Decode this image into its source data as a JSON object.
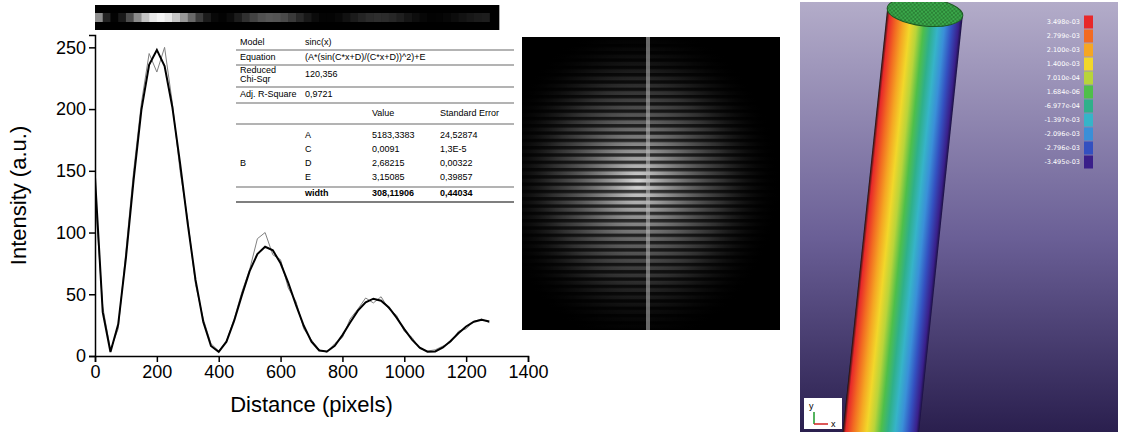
{
  "chart_data": {
    "type": "line",
    "xlabel": "Distance (pixels)",
    "ylabel": "Intensity (a.u.)",
    "xlim": [
      0,
      1400
    ],
    "ylim": [
      0,
      260
    ],
    "xticks": [
      0,
      200,
      400,
      600,
      800,
      1000,
      1200,
      1400
    ],
    "yticks": [
      0,
      50,
      100,
      150,
      200,
      250
    ],
    "series": [
      {
        "color": "#808080",
        "line_style": "solid",
        "x": [
          0,
          25,
          50,
          75,
          100,
          125,
          150,
          175,
          200,
          225,
          250,
          275,
          300,
          325,
          350,
          375,
          400,
          425,
          450,
          475,
          500,
          525,
          550,
          575,
          600,
          625,
          650,
          675,
          700,
          725,
          750,
          775,
          800,
          825,
          850,
          875,
          900,
          925,
          950,
          975,
          1000,
          1025,
          1050,
          1075,
          1100,
          1125,
          1150,
          1175,
          1200,
          1225,
          1250,
          1275
        ],
        "values": [
          130,
          40,
          5,
          22,
          85,
          150,
          205,
          245,
          230,
          250,
          205,
          150,
          110,
          58,
          30,
          10,
          4,
          12,
          30,
          52,
          70,
          95,
          100,
          82,
          78,
          55,
          44,
          22,
          13,
          5,
          3,
          10,
          15,
          30,
          38,
          47,
          43,
          48,
          38,
          33,
          20,
          15,
          6,
          4,
          5,
          8,
          11,
          20,
          22,
          28,
          30,
          27
        ]
      },
      {
        "color": "#000000",
        "line_style": "solid",
        "x": [
          0,
          25,
          50,
          75,
          100,
          125,
          150,
          175,
          200,
          225,
          250,
          275,
          300,
          325,
          350,
          375,
          400,
          425,
          450,
          475,
          500,
          525,
          550,
          575,
          600,
          625,
          650,
          675,
          700,
          725,
          750,
          775,
          800,
          825,
          850,
          875,
          900,
          925,
          950,
          975,
          1000,
          1025,
          1050,
          1075,
          1100,
          1125,
          1150,
          1175,
          1200,
          1225,
          1250,
          1275
        ],
        "values": [
          145,
          35.5,
          3.2,
          25.7,
          79.5,
          143.1,
          199.3,
          235.9,
          247.9,
          234.8,
          201.7,
          156.2,
          106.9,
          61.6,
          27.8,
          8.1,
          3.4,
          11.6,
          28.6,
          49.3,
          68.7,
          82.6,
          88.5,
          85.6,
          75.1,
          59.2,
          41.2,
          24.5,
          11.6,
          4.5,
          3.6,
          8.3,
          16.9,
          27.1,
          36.7,
          43.5,
          46.4,
          44.8,
          39.3,
          31.1,
          21.8,
          13.3,
          6.8,
          3.5,
          3.7,
          6.9,
          12.2,
          18.4,
          23.9,
          27.8,
          29.3,
          28
        ]
      }
    ]
  },
  "fit_table": {
    "info_rows": [
      [
        "Model",
        "sinc(x)"
      ],
      [
        "Equation",
        "(A*(sin(C*x+D)/(C*x+D))^2)+E"
      ],
      [
        "Reduced Chi-Sqr",
        "120,356"
      ],
      [
        "Adj. R-Square",
        "0,9721"
      ]
    ],
    "columns": [
      "Value",
      "Standard Error"
    ],
    "group": "B",
    "params": [
      [
        "A",
        "5183,3383",
        "24,52874"
      ],
      [
        "C",
        "0,0091",
        "1,3E-5"
      ],
      [
        "D",
        "2,68215",
        "0,00322"
      ],
      [
        "E",
        "3,15085",
        "0,39857"
      ],
      [
        "width",
        "308,11906",
        "0,44034"
      ]
    ]
  },
  "render": {
    "colorbar": {
      "range": [
        -0.003495,
        0.003498
      ],
      "ticks": [
        {
          "value": 0.003498,
          "label": "3.498e-03"
        },
        {
          "value": 0.002799,
          "label": "2.799e-03"
        },
        {
          "value": 0.0021,
          "label": "2.100e-03"
        },
        {
          "value": 0.0014,
          "label": "1.400e-03"
        },
        {
          "value": 0.000701,
          "label": "7.010e-04"
        },
        {
          "value": 1.684e-06,
          "label": "1.684e-06"
        },
        {
          "value": -0.0006977,
          "label": "-6.977e-04"
        },
        {
          "value": -0.001397,
          "label": "-1.397e-03"
        },
        {
          "value": -0.002096,
          "label": "-2.096e-03"
        },
        {
          "value": -0.002796,
          "label": "-2.796e-03"
        },
        {
          "value": -0.003495,
          "label": "-3.495e-03"
        }
      ],
      "colors": [
        "#e8282a",
        "#f26a22",
        "#f5a623",
        "#f2d72a",
        "#b8d43a",
        "#4fbf4a",
        "#2fb08a",
        "#36b4c8",
        "#3a8fd8",
        "#3450c0",
        "#3a1f8a"
      ]
    },
    "triad_labels": [
      "y",
      "x"
    ]
  }
}
